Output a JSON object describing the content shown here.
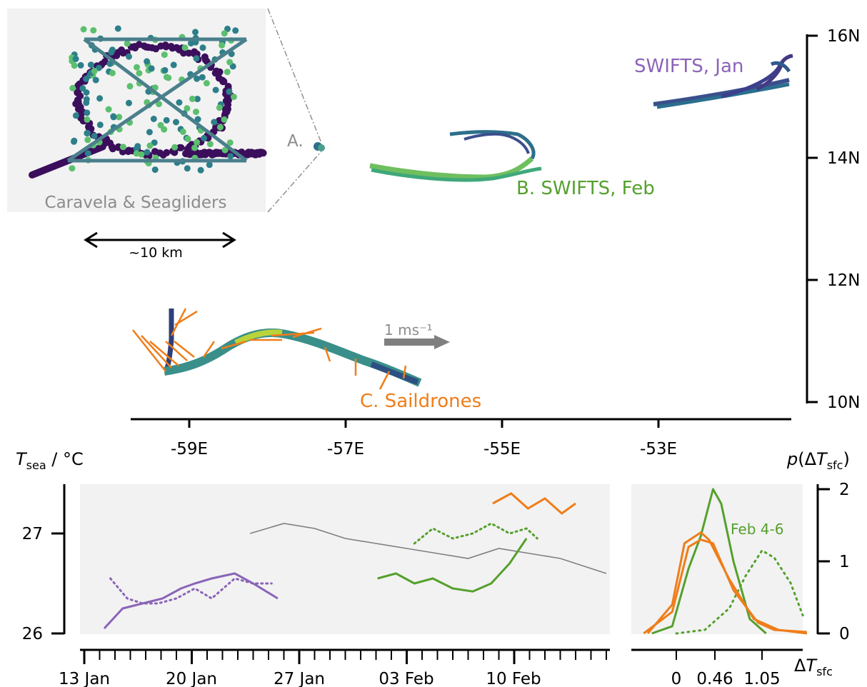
{
  "chart_data": [
    {
      "type": "scatter",
      "panel": "map",
      "x_axis": {
        "ticks": [
          "-59E",
          "-57E",
          "-55E",
          "-53E"
        ],
        "range": [
          -59.9,
          -51.5
        ]
      },
      "y_axis": {
        "ticks": [
          "10N",
          "12N",
          "14N",
          "16N"
        ],
        "range": [
          10,
          16
        ]
      },
      "labels": {
        "A": "A.",
        "B": "B. SWIFTS, Feb",
        "C": "C. Saildrones",
        "swifts_jan": "SWIFTS, Jan",
        "inset": "Caravela & Seagliders",
        "scale": "~10 km",
        "arrow_key": "1 ms⁻¹"
      },
      "tracks": [
        {
          "name": "SWIFTS, Jan",
          "lon": [
            -52.1,
            -51.8,
            -51.5,
            -51.35
          ],
          "lat": [
            14.9,
            15.05,
            15.3,
            15.6
          ]
        },
        {
          "name": "B. SWIFTS, Feb",
          "lon": [
            -57.3,
            -56.2,
            -55.2,
            -54.6,
            -54.9,
            -55.6
          ],
          "lat": [
            13.85,
            13.7,
            13.7,
            13.9,
            14.15,
            14.3
          ]
        },
        {
          "name": "C. Saildrones",
          "lon": [
            -59.2,
            -58.7,
            -57.9,
            -57.3,
            -56.5,
            -56.0
          ],
          "lat": [
            10.4,
            10.75,
            11.0,
            10.95,
            10.55,
            10.3
          ]
        },
        {
          "name": "A.",
          "lon": [
            -57.5
          ],
          "lat": [
            14.05
          ]
        }
      ],
      "colors": {
        "swifts_jan": "#8a64b8",
        "swifts_feb": "#55a02d",
        "saildrones": "#ef7d1a",
        "caravela": "#7f7f7f"
      }
    },
    {
      "type": "line",
      "panel": "timeseries",
      "ylabel": "T_sea / °C",
      "yticks": [
        "26",
        "27"
      ],
      "ylim": [
        26,
        27.5
      ],
      "xticks": [
        "13 Jan",
        "20 Jan",
        "27 Jan",
        "03 Feb",
        "10 Feb"
      ],
      "xlim_days_from_13jan": [
        0,
        34
      ],
      "series": [
        {
          "x": [
            1.3,
            2.5,
            3.8,
            5.1,
            6.3,
            7.2,
            8.3,
            9.8,
            11.0,
            12.6
          ],
          "y": [
            26.05,
            26.25,
            26.3,
            26.35,
            26.45,
            26.5,
            26.55,
            26.6,
            26.5,
            26.35
          ],
          "color": "#8a64b8",
          "style": "solid"
        },
        {
          "x": [
            1.7,
            2.8,
            3.8,
            4.8,
            6.0,
            7.2,
            8.3,
            9.8,
            11.0,
            12.2
          ],
          "y": [
            26.55,
            26.35,
            26.3,
            26.3,
            26.35,
            26.45,
            26.35,
            26.55,
            26.5,
            26.5
          ],
          "color": "#8a64b8",
          "style": "dotted"
        },
        {
          "x": [
            10.8,
            13.0,
            15.0,
            17.0,
            19.0,
            21.0,
            23.0,
            25.0,
            27.0,
            29.0,
            31.0,
            33.0,
            34.0
          ],
          "y": [
            27.0,
            27.1,
            27.05,
            26.95,
            26.9,
            26.85,
            26.8,
            26.75,
            26.85,
            26.8,
            26.75,
            26.65,
            26.6
          ],
          "color": "#7f7f7f",
          "style": "solid"
        },
        {
          "x": [
            19.1,
            20.3,
            21.5,
            22.7,
            24.0,
            25.3,
            26.5,
            27.7,
            28.8
          ],
          "y": [
            26.55,
            26.6,
            26.5,
            26.55,
            26.45,
            26.42,
            26.5,
            26.7,
            26.95
          ],
          "color": "#55a02d",
          "style": "solid"
        },
        {
          "x": [
            21.5,
            22.7,
            24.0,
            25.3,
            26.5,
            27.7,
            28.8,
            29.5
          ],
          "y": [
            26.9,
            27.05,
            26.95,
            27.0,
            27.1,
            27.0,
            27.05,
            26.95
          ],
          "color": "#55a02d",
          "style": "dotted"
        },
        {
          "x": [
            26.6,
            27.8,
            28.9,
            30.0,
            31.1,
            32.0
          ],
          "y": [
            27.3,
            27.4,
            27.25,
            27.35,
            27.2,
            27.3
          ],
          "color": "#ef7d1a",
          "style": "solid"
        }
      ]
    },
    {
      "type": "line",
      "panel": "pdf",
      "ylabel": "p(ΔT_sfc)",
      "xlabel": "ΔT_sfc",
      "yticks": [
        "0",
        "1",
        "2"
      ],
      "ylim": [
        0,
        2.05
      ],
      "xticks": [
        "0",
        "0.46",
        "1.05"
      ],
      "xlim": [
        -0.4,
        1.6
      ],
      "annotation": "Feb 4-6",
      "series": [
        {
          "x": [
            -0.3,
            -0.05,
            0.15,
            0.3,
            0.45,
            0.55,
            0.7,
            0.9,
            1.1
          ],
          "y": [
            0.0,
            0.1,
            0.9,
            1.35,
            2.0,
            1.8,
            1.0,
            0.2,
            0.0
          ],
          "color": "#55a02d",
          "style": "solid"
        },
        {
          "x": [
            0.0,
            0.35,
            0.65,
            0.85,
            1.05,
            1.2,
            1.4,
            1.55
          ],
          "y": [
            0.0,
            0.05,
            0.35,
            0.8,
            1.15,
            1.05,
            0.7,
            0.25
          ],
          "color": "#55a02d",
          "style": "dotted"
        },
        {
          "x": [
            -0.4,
            -0.05,
            0.15,
            0.3,
            0.45,
            0.7,
            1.0,
            1.2,
            1.6
          ],
          "y": [
            0.0,
            0.3,
            1.2,
            1.3,
            1.25,
            0.6,
            0.15,
            0.05,
            0.02
          ],
          "color": "#ef7d1a",
          "style": "solid"
        },
        {
          "x": [
            -0.35,
            -0.05,
            0.1,
            0.3,
            0.4,
            0.65,
            0.95,
            1.25,
            1.6
          ],
          "y": [
            0.0,
            0.4,
            1.25,
            1.4,
            1.3,
            0.75,
            0.2,
            0.05,
            0.0
          ],
          "color": "#ef7d1a",
          "style": "solid"
        }
      ]
    }
  ]
}
